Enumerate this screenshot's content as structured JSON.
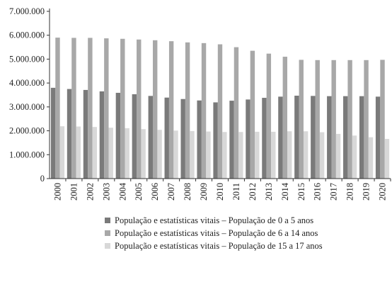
{
  "chart_data": {
    "type": "bar",
    "title": "",
    "xlabel": "",
    "ylabel": "",
    "ylim": [
      0,
      7000000
    ],
    "yticks": [
      0,
      1000000,
      2000000,
      3000000,
      4000000,
      5000000,
      6000000,
      7000000
    ],
    "ytick_labels": [
      "0",
      "1.000.000",
      "2.000.000",
      "3.000.000",
      "4.000.000",
      "5.000.000",
      "6.000.000",
      "7.000.000"
    ],
    "grid": false,
    "legend_position": "bottom",
    "categories": [
      "2000",
      "2001",
      "2002",
      "2003",
      "2004",
      "2005",
      "2006",
      "2007",
      "2008",
      "2009",
      "2010",
      "2011",
      "2012",
      "2013",
      "2014",
      "2015",
      "2016",
      "2017",
      "2018",
      "2019",
      "2020"
    ],
    "series": [
      {
        "name": "População e estatísticas vitais – População de 0 a 5 anos",
        "color": "#7a7a7a",
        "values": [
          3800000,
          3750000,
          3710000,
          3650000,
          3590000,
          3530000,
          3460000,
          3390000,
          3330000,
          3270000,
          3190000,
          3260000,
          3310000,
          3380000,
          3430000,
          3470000,
          3460000,
          3450000,
          3450000,
          3450000,
          3430000
        ]
      },
      {
        "name": "População e estatísticas vitais – População de 6 a 14 anos",
        "color": "#a8a8a8",
        "values": [
          5900000,
          5890000,
          5890000,
          5870000,
          5850000,
          5820000,
          5790000,
          5750000,
          5700000,
          5670000,
          5620000,
          5500000,
          5350000,
          5230000,
          5100000,
          4970000,
          4960000,
          4960000,
          4960000,
          4960000,
          4970000
        ]
      },
      {
        "name": "População e estatísticas vitais – População de 15 a 17 anos",
        "color": "#d8d8d8",
        "values": [
          2190000,
          2180000,
          2160000,
          2130000,
          2110000,
          2070000,
          2040000,
          2010000,
          1990000,
          1970000,
          1950000,
          1950000,
          1960000,
          1960000,
          1980000,
          1980000,
          1940000,
          1870000,
          1800000,
          1730000,
          1660000
        ]
      }
    ]
  }
}
